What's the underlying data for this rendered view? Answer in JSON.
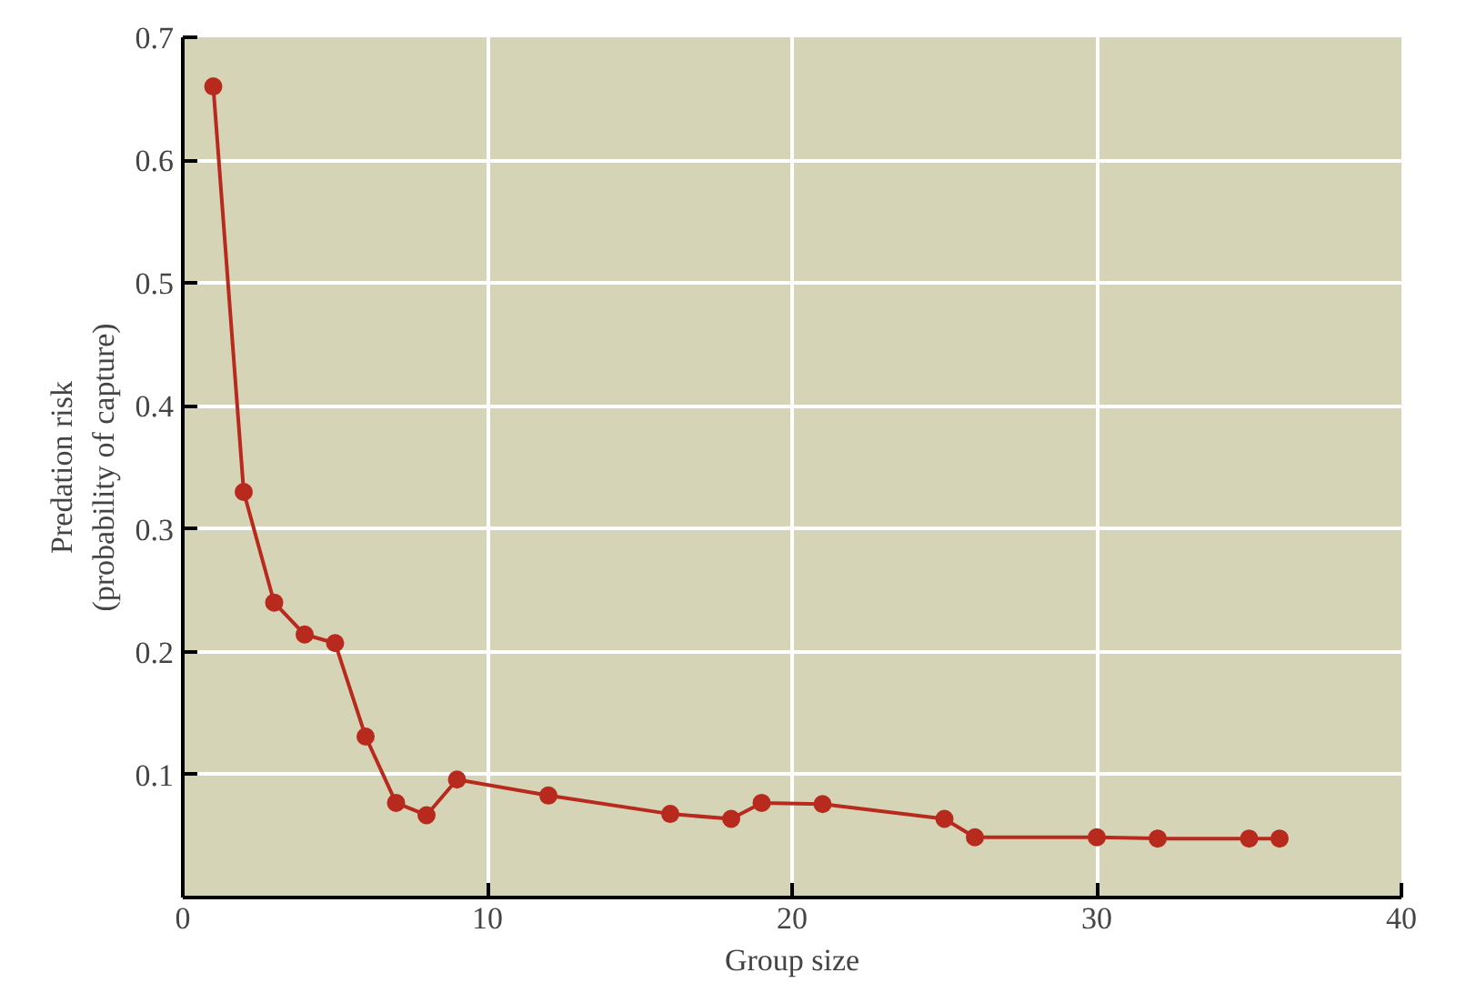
{
  "chart_data": {
    "type": "line",
    "xlabel": "Group size",
    "ylabel": "Predation risk\n(probability of capture)",
    "x": [
      1,
      2,
      3,
      4,
      5,
      6,
      7,
      8,
      9,
      12,
      16,
      18,
      19,
      21,
      25,
      26,
      30,
      32,
      35,
      36
    ],
    "series": [
      {
        "color": "#b8291e",
        "values": [
          0.66,
          0.33,
          0.24,
          0.214,
          0.207,
          0.131,
          0.077,
          0.067,
          0.096,
          0.083,
          0.068,
          0.064,
          0.077,
          0.076,
          0.064,
          0.049,
          0.049,
          0.048,
          0.048,
          0.048
        ]
      }
    ],
    "xlim": [
      0,
      40
    ],
    "xticks": [
      0,
      10,
      20,
      30,
      40
    ],
    "ylim": [
      0,
      0.7
    ],
    "yticks": [
      0.1,
      0.2,
      0.3,
      0.4,
      0.5,
      0.6,
      0.7
    ],
    "grid": true,
    "marker": "circle",
    "line_style": "solid"
  }
}
